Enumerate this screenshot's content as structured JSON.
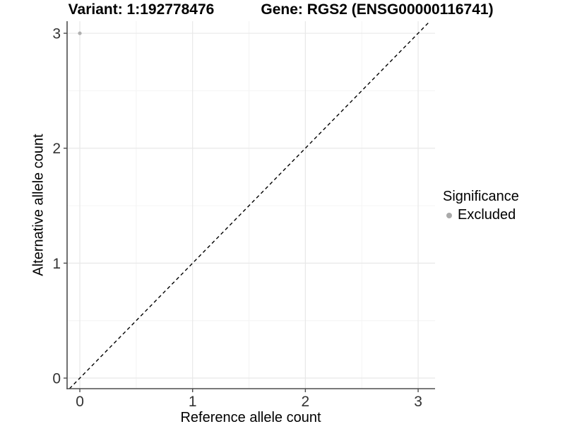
{
  "figure": {
    "title_left": "Variant: 1:192778476",
    "title_right": "Gene: RGS2 (ENSG00000116741)",
    "background": "#ffffff"
  },
  "axes": {
    "x_label": "Reference allele count",
    "y_label": "Alternative allele count",
    "x_ticks": [
      "0",
      "1",
      "2",
      "3"
    ],
    "y_ticks": [
      "0",
      "1",
      "2",
      "3"
    ]
  },
  "legend": {
    "title": "Significance",
    "items": [
      {
        "label": "Excluded",
        "marker": "circle-icon",
        "color": "#aaaaaa"
      }
    ]
  },
  "colors": {
    "grid_major": "#e8e8e8",
    "grid_minor": "#f4f4f4",
    "axis_line": "#4d4d4d",
    "tick_text": "#333333",
    "identity_line": "#000000",
    "point": "#b0b0b0"
  },
  "chart_data": {
    "type": "scatter",
    "title": "Variant: 1:192778476 / Gene: RGS2 (ENSG00000116741)",
    "xlabel": "Reference allele count",
    "ylabel": "Alternative allele count",
    "xlim": [
      -0.113,
      3.15
    ],
    "ylim": [
      -0.092,
      3.105
    ],
    "x_major_ticks": [
      0,
      1,
      2,
      3
    ],
    "y_major_ticks": [
      0,
      1,
      2,
      3
    ],
    "x_minor_ticks": [
      0.5,
      1.5,
      2.5
    ],
    "y_minor_ticks": [
      0.5,
      1.5,
      2.5
    ],
    "grid": true,
    "legend_position": "right",
    "legend_title": "Significance",
    "series": [
      {
        "name": "Excluded",
        "color": "#b0b0b0",
        "points": [
          {
            "x": 0,
            "y": 3
          }
        ]
      }
    ],
    "reference_line": {
      "type": "identity",
      "slope": 1,
      "intercept": 0,
      "style": "dashed",
      "color": "#000000"
    }
  }
}
